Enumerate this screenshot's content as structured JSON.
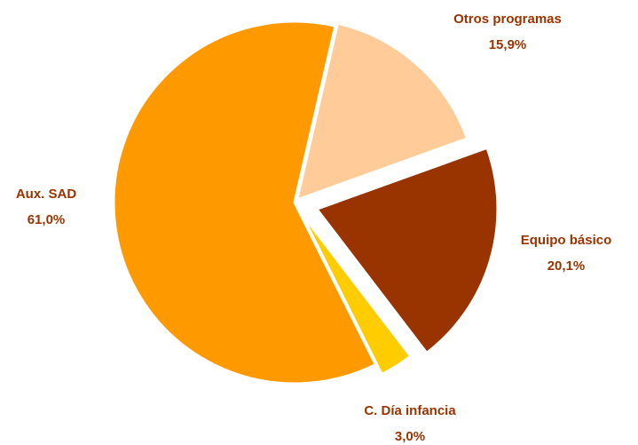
{
  "chart_data": {
    "type": "pie",
    "categories": [
      "Otros programas",
      "Equipo básico",
      "C. Día infancia",
      "Aux. SAD"
    ],
    "values": [
      15.9,
      20.1,
      3.0,
      61.0
    ],
    "value_labels": [
      "15,9%",
      "20,1%",
      "3,0%",
      "61,0%"
    ],
    "colors": [
      "#FFCC99",
      "#993300",
      "#FFCC00",
      "#FF9900"
    ]
  }
}
